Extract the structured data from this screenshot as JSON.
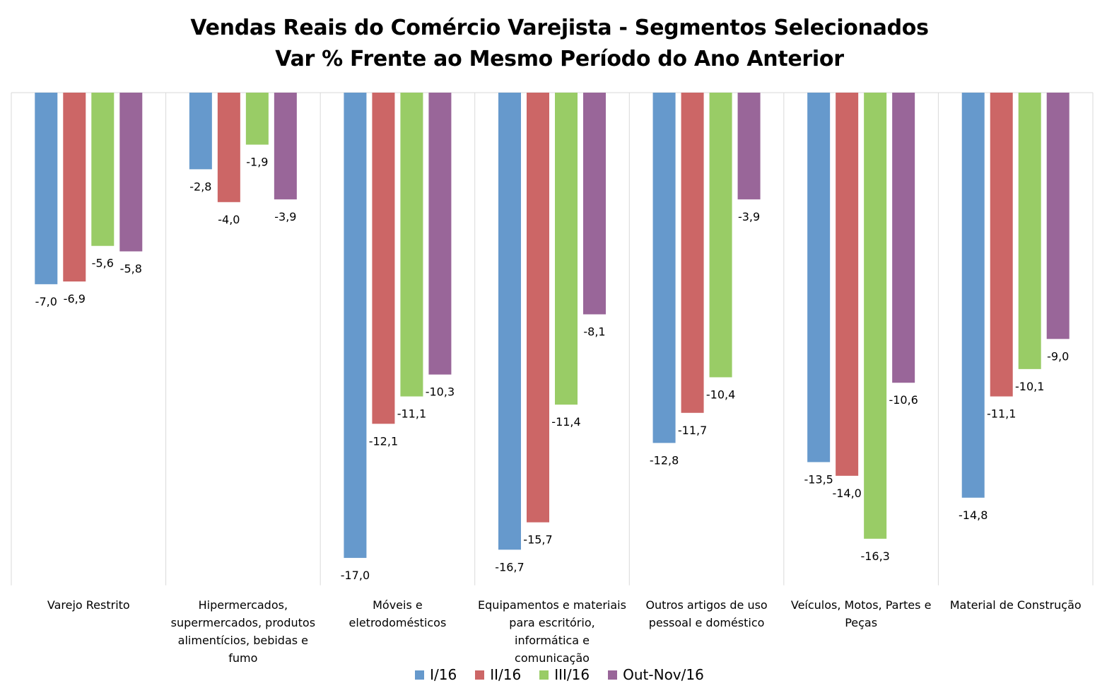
{
  "chart_data": {
    "type": "bar",
    "title": "Vendas Reais do Comércio Varejista - Segmentos Selecionados",
    "subtitle": "Var % Frente ao Mesmo Período do Ano Anterior",
    "categories": [
      [
        "Varejo Restrito"
      ],
      [
        "Hipermercados,",
        "supermercados, produtos",
        "alimentícios, bebidas e",
        "fumo"
      ],
      [
        "Móveis e",
        "eletrodomésticos"
      ],
      [
        "Equipamentos e materiais",
        "para escritório,",
        "informática e",
        "comunicação"
      ],
      [
        "Outros artigos de uso",
        "pessoal e doméstico"
      ],
      [
        "Veículos, Motos, Partes e",
        "Peças"
      ],
      [
        "Material de Construção"
      ]
    ],
    "series": [
      {
        "name": "I/16",
        "color": "#6699CC",
        "values": [
          -7.0,
          -2.8,
          -17.0,
          -16.7,
          -12.8,
          -13.5,
          -14.8
        ],
        "labels": [
          "-7,0",
          "-2,8",
          "-17,0",
          "-16,7",
          "-12,8",
          "-13,5",
          "-14,8"
        ]
      },
      {
        "name": "II/16",
        "color": "#CC6666",
        "values": [
          -6.9,
          -4.0,
          -12.1,
          -15.7,
          -11.7,
          -14.0,
          -11.1
        ],
        "labels": [
          "-6,9",
          "-4,0",
          "-12,1",
          "-15,7",
          "-11,7",
          "-14,0",
          "-11,1"
        ]
      },
      {
        "name": "III/16",
        "color": "#99CC66",
        "values": [
          -5.6,
          -1.9,
          -11.1,
          -11.4,
          -10.4,
          -16.3,
          -10.1
        ],
        "labels": [
          "-5,6",
          "-1,9",
          "-11,1",
          "-11,4",
          "-10,4",
          "-16,3",
          "-10,1"
        ]
      },
      {
        "name": "Out-Nov/16",
        "color": "#996699",
        "values": [
          -5.8,
          -3.9,
          -10.3,
          -8.1,
          -3.9,
          -10.6,
          -9.0
        ],
        "labels": [
          "-5,8",
          "-3,9",
          "-10,3",
          "-8,1",
          "-3,9",
          "-10,6",
          "-9,0"
        ]
      }
    ],
    "ylim": [
      -18,
      0
    ],
    "grid": false,
    "legend_position": "bottom",
    "xlabel": "",
    "ylabel": ""
  }
}
